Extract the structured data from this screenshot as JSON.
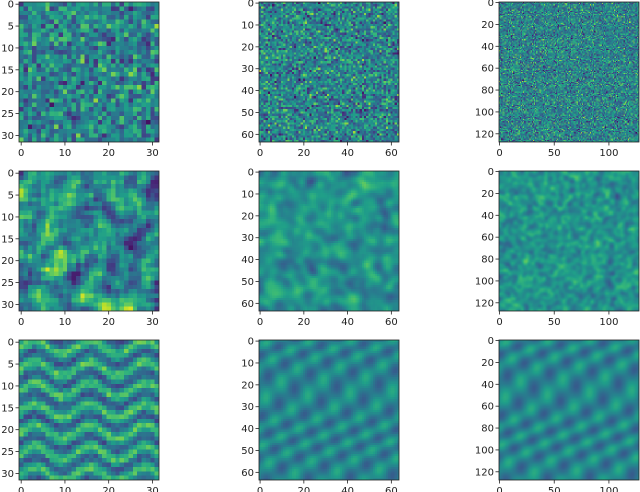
{
  "chart_data": {
    "type": "heatmap",
    "colormap": "viridis",
    "grid": false,
    "legend": "none",
    "panels": [
      {
        "rows_label": "row 1",
        "size": 32,
        "pattern": "white-noise",
        "xticks": [
          0,
          10,
          20,
          30
        ],
        "yticks": [
          0,
          5,
          10,
          15,
          20,
          25,
          30
        ],
        "xlim": [
          0,
          31
        ],
        "ylim": [
          31,
          0
        ]
      },
      {
        "rows_label": "row 1",
        "size": 64,
        "pattern": "white-noise",
        "xticks": [
          0,
          20,
          40,
          60
        ],
        "yticks": [
          0,
          10,
          20,
          30,
          40,
          50,
          60
        ],
        "xlim": [
          0,
          63
        ],
        "ylim": [
          63,
          0
        ]
      },
      {
        "rows_label": "row 1",
        "size": 128,
        "pattern": "white-noise",
        "xticks": [
          0,
          50,
          100
        ],
        "yticks": [
          0,
          20,
          40,
          60,
          80,
          100,
          120
        ],
        "xlim": [
          0,
          127
        ],
        "ylim": [
          127,
          0
        ]
      },
      {
        "rows_label": "row 2",
        "size": 32,
        "pattern": "smooth-noise",
        "xticks": [
          0,
          10,
          20,
          30
        ],
        "yticks": [
          0,
          5,
          10,
          15,
          20,
          25,
          30
        ],
        "xlim": [
          0,
          31
        ],
        "ylim": [
          31,
          0
        ]
      },
      {
        "rows_label": "row 2",
        "size": 64,
        "pattern": "smooth-noise",
        "xticks": [
          0,
          20,
          40,
          60
        ],
        "yticks": [
          0,
          10,
          20,
          30,
          40,
          50,
          60
        ],
        "xlim": [
          0,
          63
        ],
        "ylim": [
          63,
          0
        ]
      },
      {
        "rows_label": "row 2",
        "size": 128,
        "pattern": "smooth-noise",
        "xticks": [
          0,
          50,
          100
        ],
        "yticks": [
          0,
          20,
          40,
          60,
          80,
          100,
          120
        ],
        "xlim": [
          0,
          127
        ],
        "ylim": [
          127,
          0
        ]
      },
      {
        "rows_label": "row 3",
        "size": 32,
        "pattern": "striped-waves",
        "xticks": [
          0,
          10,
          20,
          30
        ],
        "yticks": [
          0,
          5,
          10,
          15,
          20,
          25,
          30
        ],
        "xlim": [
          0,
          31
        ],
        "ylim": [
          31,
          0
        ]
      },
      {
        "rows_label": "row 3",
        "size": 64,
        "pattern": "wavy-blur",
        "xticks": [
          0,
          20,
          40,
          60
        ],
        "yticks": [
          0,
          10,
          20,
          30,
          40,
          50,
          60
        ],
        "xlim": [
          0,
          63
        ],
        "ylim": [
          63,
          0
        ]
      },
      {
        "rows_label": "row 3",
        "size": 128,
        "pattern": "wavy-blur",
        "xticks": [
          0,
          50,
          100
        ],
        "yticks": [
          0,
          20,
          40,
          60,
          80,
          100,
          120
        ],
        "xlim": [
          0,
          127
        ],
        "ylim": [
          127,
          0
        ]
      }
    ]
  }
}
